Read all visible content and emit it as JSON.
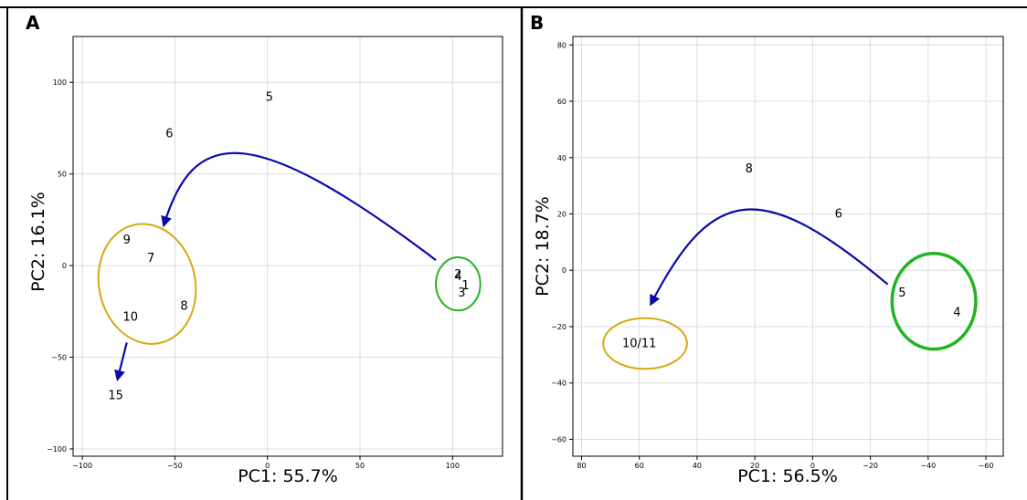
{
  "figure": {
    "colors": {
      "curve": "#0a0aa8",
      "cluster_yellow": "#d4aa14",
      "cluster_green": "#22b422",
      "grid": "#dcdcdc",
      "frame": "#000000"
    }
  },
  "chart_data": [
    {
      "panel_label": "A",
      "type": "scatter",
      "title": "",
      "xlabel": "PC1: 55.7%",
      "ylabel": "PC2: 16.1%",
      "xlim": [
        -105,
        127
      ],
      "ylim": [
        -104,
        125
      ],
      "x_reversed": false,
      "grid": true,
      "xticks": [
        -100,
        -50,
        0,
        50,
        100
      ],
      "yticks": [
        -100,
        -50,
        0,
        50,
        100
      ],
      "xtick_labels": [
        "−100",
        "−50",
        "0",
        "50",
        "100"
      ],
      "ytick_labels": [
        "−100",
        "−50",
        "0",
        "50",
        "100"
      ],
      "points": [
        {
          "label": "1",
          "x": 107,
          "y": -11
        },
        {
          "label": "2",
          "x": 103,
          "y": -5
        },
        {
          "label": "3",
          "x": 105,
          "y": -15
        },
        {
          "label": "4",
          "x": 103,
          "y": -6
        },
        {
          "label": "5",
          "x": 1,
          "y": 92
        },
        {
          "label": "6",
          "x": -53,
          "y": 72
        },
        {
          "label": "7",
          "x": -63,
          "y": 4
        },
        {
          "label": "8",
          "x": -45,
          "y": -22
        },
        {
          "label": "9",
          "x": -76,
          "y": 14
        },
        {
          "label": "10",
          "x": -74,
          "y": -28
        },
        {
          "label": "15",
          "x": -82,
          "y": -71
        }
      ],
      "ellipses": [
        {
          "color": "yellow",
          "cx": -65,
          "cy": -10,
          "rx": 26,
          "ry": 33,
          "rotation_deg": -12
        },
        {
          "color": "green",
          "cx": 103,
          "cy": -10,
          "rx": 12,
          "ry": 14.5,
          "rotation_deg": 0
        }
      ],
      "trajectories": [
        {
          "path": [
            [
              91,
              3
            ],
            [
              -10,
              80
            ],
            [
              -40,
              75
            ],
            [
              -56,
              22
            ]
          ]
        },
        {
          "path": [
            [
              -76,
              -42
            ],
            [
              -81,
              -62
            ]
          ]
        }
      ]
    },
    {
      "panel_label": "B",
      "type": "scatter",
      "title": "",
      "xlabel": "PC1: 56.5%",
      "ylabel": "PC2: 18.7%",
      "xlim": [
        83,
        -66
      ],
      "ylim": [
        -66,
        83
      ],
      "x_reversed": true,
      "grid": true,
      "xticks": [
        80,
        60,
        40,
        20,
        0,
        -20,
        -40,
        -60
      ],
      "yticks": [
        -60,
        -40,
        -20,
        0,
        20,
        40,
        60,
        80
      ],
      "xtick_labels": [
        "80",
        "60",
        "40",
        "20",
        "0",
        "−20",
        "−40",
        "−60"
      ],
      "ytick_labels": [
        "−60",
        "−40",
        "−20",
        "0",
        "20",
        "40",
        "60",
        "80"
      ],
      "points": [
        {
          "label": "4",
          "x": -50,
          "y": -15
        },
        {
          "label": "5",
          "x": -31,
          "y": -8
        },
        {
          "label": "6",
          "x": -9,
          "y": 20
        },
        {
          "label": "8",
          "x": 22,
          "y": 36
        },
        {
          "label": "10/11",
          "x": 60,
          "y": -26
        }
      ],
      "ellipses": [
        {
          "color": "yellow",
          "cx": 58,
          "cy": -26,
          "rx": 14.5,
          "ry": 9,
          "rotation_deg": 0
        },
        {
          "color": "green",
          "cx": -42,
          "cy": -11,
          "rx": 14.5,
          "ry": 17,
          "rotation_deg": 0
        }
      ],
      "trajectories": [
        {
          "path": [
            [
              -26,
              -5
            ],
            [
              18,
              33
            ],
            [
              35,
              30
            ],
            [
              56,
              -12
            ]
          ]
        }
      ]
    }
  ]
}
